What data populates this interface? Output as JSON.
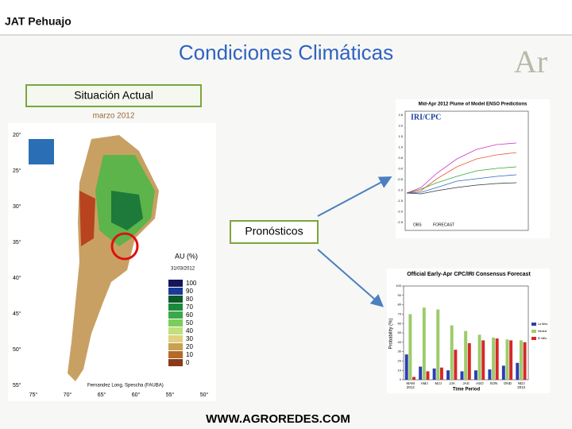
{
  "header": {
    "title": "JAT Pehuajo"
  },
  "slide": {
    "title": "Condiciones Climáticas",
    "current_label": "Situación Actual",
    "date_label": "marzo 2012",
    "forecast_label": "Pronósticos",
    "footer": "WWW.AGROREDES.COM",
    "logo": "Ar"
  },
  "map": {
    "lat_labels": [
      "20°",
      "25°",
      "30°",
      "35°",
      "40°",
      "45°",
      "50°",
      "55°"
    ],
    "lon_labels": [
      "75°",
      "70°",
      "65°",
      "60°",
      "55°",
      "50°"
    ],
    "legend_title": "AU (%)",
    "legend_date": "31/03/2012",
    "legend_labels": [
      100,
      90,
      80,
      70,
      60,
      50,
      40,
      30,
      20,
      10,
      0
    ],
    "credit": "Fernandez Long, Spescha (FAUBA)"
  },
  "plume": {
    "title": "Mid-Apr 2012 Plume of Model ENSO Predictions",
    "badge": "IRI/CPC",
    "yticks": [
      "2.5",
      "2.0",
      "1.5",
      "1.0",
      "0.5",
      "0.0",
      "-0.5",
      "-1.0",
      "-1.5",
      "-2.0",
      "-2.5"
    ],
    "obs_label": "OBS",
    "forecast_label": "FORECAST"
  },
  "forecast_chart": {
    "type": "bar",
    "title": "Official Early-Apr CPC/IRI Consensus Forecast",
    "ylabel": "Probability (%)",
    "xlabel": "Time Period",
    "categories": [
      "MAM",
      "AMJ",
      "MJJ",
      "JJA",
      "JAS",
      "ASO",
      "SON",
      "OND",
      "NDJ"
    ],
    "sublabels": [
      "2012",
      null,
      null,
      null,
      null,
      null,
      null,
      null,
      "2012"
    ],
    "ylim": [
      0,
      100
    ],
    "yticks": [
      0,
      10,
      20,
      30,
      40,
      50,
      60,
      70,
      80,
      90,
      100
    ],
    "series": [
      {
        "name": "La Niña",
        "color": "#2b3fb0",
        "values": [
          27,
          14,
          12,
          10,
          9,
          10,
          11,
          15,
          18
        ]
      },
      {
        "name": "Neutral",
        "color": "#9ccc6a",
        "values": [
          70,
          77,
          75,
          58,
          52,
          48,
          45,
          43,
          42
        ]
      },
      {
        "name": "El Niño",
        "color": "#d62828",
        "values": [
          3,
          9,
          13,
          32,
          39,
          42,
          44,
          42,
          40
        ]
      }
    ]
  }
}
